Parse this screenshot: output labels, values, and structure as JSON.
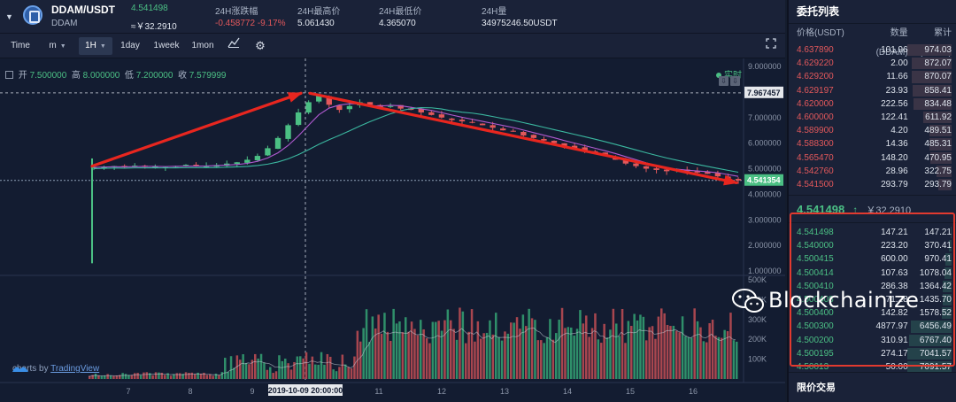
{
  "header": {
    "pair": "DDAM/USDT",
    "coin": "DDAM",
    "price": "4.541498",
    "price_cny": "≈￥32.2910",
    "change_label": "24H涨跌幅",
    "change_value": "-0.458772 -9.17%",
    "high_label": "24H最高价",
    "high_value": "5.061430",
    "low_label": "24H最低价",
    "low_value": "4.365070",
    "volume_label": "24H量",
    "volume_value": "34975246.50USDT"
  },
  "toolbar": {
    "time": "Time",
    "minute": "m",
    "hour": "1H",
    "day": "1day",
    "week": "1week",
    "month": "1mon"
  },
  "legend": {
    "open_label": "开",
    "open": "7.500000",
    "high_label": "高",
    "high": "8.000000",
    "low_label": "低",
    "low": "7.200000",
    "close_label": "收",
    "close": "7.579999"
  },
  "realtime_label": "实时",
  "watermark": {
    "prefix": "charts by ",
    "brand": "TradingView"
  },
  "wechat_brand": "Blockchainize",
  "chart_data": [
    {
      "type": "candlestick",
      "x_ticks": [
        "7",
        "8",
        "9",
        "2019-10-09 20:00:00",
        "11",
        "12",
        "13",
        "14",
        "15",
        "16"
      ],
      "y_ticks": [
        "9.000000",
        "8.000000",
        "7.000000",
        "6.000000",
        "5.000000",
        "4.000000",
        "3.000000",
        "2.000000",
        "1.000000"
      ],
      "ylim": [
        1,
        9
      ],
      "crosshair_price": "7.967457",
      "last_price": "4.541354",
      "trend_annotations": "red arrows: rise to peak then decline",
      "close_series": [
        5.05,
        5.08,
        5.1,
        5.05,
        5.12,
        5.1,
        5.08,
        5.06,
        5.1,
        5.15,
        5.12,
        5.1,
        5.14,
        5.2,
        5.25,
        5.35,
        5.5,
        5.8,
        6.2,
        6.7,
        7.2,
        7.6,
        7.85,
        7.5,
        7.3,
        7.45,
        7.6,
        7.5,
        7.4,
        7.45,
        7.35,
        7.3,
        7.2,
        7.1,
        7.0,
        6.9,
        6.85,
        6.8,
        6.7,
        6.6,
        6.5,
        6.45,
        6.3,
        6.2,
        6.1,
        6.0,
        5.9,
        5.8,
        5.7,
        5.6,
        5.5,
        5.35,
        5.2,
        5.1,
        5.0,
        4.95,
        4.9,
        4.95,
        4.9,
        4.85,
        4.8,
        4.7,
        4.6,
        4.54
      ]
    },
    {
      "type": "bar",
      "name": "volume",
      "y_ticks": [
        "500K",
        "400K",
        "300K",
        "200K",
        "100K"
      ],
      "ylim": [
        0,
        500000
      ]
    }
  ],
  "order_book": {
    "title": "委托列表",
    "col_price": "价格(USDT)",
    "col_amount": "数量(DDAM)",
    "col_total": "累计(DDAM)",
    "asks": [
      {
        "price": "4.637890",
        "amount": "101.96",
        "total": "974.03",
        "depth": 1.0
      },
      {
        "price": "4.629220",
        "amount": "2.00",
        "total": "872.07",
        "depth": 0.9
      },
      {
        "price": "4.629200",
        "amount": "11.66",
        "total": "870.07",
        "depth": 0.89
      },
      {
        "price": "4.629197",
        "amount": "23.93",
        "total": "858.41",
        "depth": 0.88
      },
      {
        "price": "4.620000",
        "amount": "222.56",
        "total": "834.48",
        "depth": 0.86
      },
      {
        "price": "4.600000",
        "amount": "122.41",
        "total": "611.92",
        "depth": 0.63
      },
      {
        "price": "4.589900",
        "amount": "4.20",
        "total": "489.51",
        "depth": 0.5
      },
      {
        "price": "4.588300",
        "amount": "14.36",
        "total": "485.31",
        "depth": 0.5
      },
      {
        "price": "4.565470",
        "amount": "148.20",
        "total": "470.95",
        "depth": 0.48
      },
      {
        "price": "4.542760",
        "amount": "28.96",
        "total": "322.75",
        "depth": 0.33
      },
      {
        "price": "4.541500",
        "amount": "293.79",
        "total": "293.79",
        "depth": 0.3
      }
    ],
    "last_price": "4.541498",
    "last_arrow": "↑",
    "last_cny": "￥32.2910",
    "bids": [
      {
        "price": "4.541498",
        "amount": "147.21",
        "total": "147.21",
        "depth": 0.02
      },
      {
        "price": "4.540000",
        "amount": "223.20",
        "total": "370.41",
        "depth": 0.05
      },
      {
        "price": "4.500415",
        "amount": "600.00",
        "total": "970.41",
        "depth": 0.14
      },
      {
        "price": "4.500414",
        "amount": "107.63",
        "total": "1078.04",
        "depth": 0.15
      },
      {
        "price": "4.500410",
        "amount": "286.38",
        "total": "1364.42",
        "depth": 0.19
      },
      {
        "price": "4.500408",
        "amount": "71.28",
        "total": "1435.70",
        "depth": 0.2
      },
      {
        "price": "4.500400",
        "amount": "142.82",
        "total": "1578.52",
        "depth": 0.22
      },
      {
        "price": "4.500300",
        "amount": "4877.97",
        "total": "6456.49",
        "depth": 0.91
      },
      {
        "price": "4.500200",
        "amount": "310.91",
        "total": "6767.40",
        "depth": 0.95
      },
      {
        "price": "4.500195",
        "amount": "274.17",
        "total": "7041.57",
        "depth": 0.99
      },
      {
        "price": "4.50013",
        "amount": "50.00",
        "total": "7091.57",
        "depth": 1.0
      }
    ],
    "limit_order": "限价交易"
  }
}
